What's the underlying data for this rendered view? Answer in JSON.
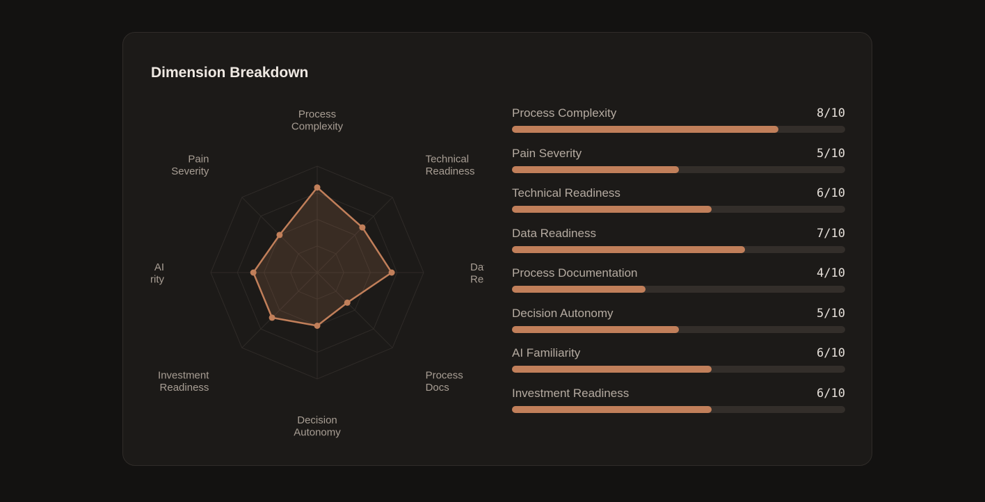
{
  "title": "Dimension Breakdown",
  "colors": {
    "accent": "#c17f5a",
    "grid": "#2f2b28",
    "track": "#332e2a"
  },
  "chart_data": {
    "type": "radar",
    "max": 10,
    "rings": 4,
    "axes": [
      {
        "name": "Process Complexity",
        "label_lines": [
          "Process",
          "Complexity"
        ],
        "value": 8
      },
      {
        "name": "Technical Readiness",
        "label_lines": [
          "Technical",
          "Readiness"
        ],
        "value": 6
      },
      {
        "name": "Data Readiness",
        "label_lines": [
          "Data",
          "Readiness"
        ],
        "value": 7
      },
      {
        "name": "Process Documentation",
        "label_lines": [
          "Process",
          "Docs"
        ],
        "value": 4
      },
      {
        "name": "Decision Autonomy",
        "label_lines": [
          "Decision",
          "Autonomy"
        ],
        "value": 5
      },
      {
        "name": "Investment Readiness",
        "label_lines": [
          "Investment",
          "Readiness"
        ],
        "value": 6
      },
      {
        "name": "AI Familiarity",
        "label_lines": [
          "AI",
          "Familiarity"
        ],
        "value": 6
      },
      {
        "name": "Pain Severity",
        "label_lines": [
          "Pain",
          "Severity"
        ],
        "value": 5
      }
    ]
  },
  "bars": [
    {
      "label": "Process Complexity",
      "value": 8,
      "display": "8/10"
    },
    {
      "label": "Pain Severity",
      "value": 5,
      "display": "5/10"
    },
    {
      "label": "Technical Readiness",
      "value": 6,
      "display": "6/10"
    },
    {
      "label": "Data Readiness",
      "value": 7,
      "display": "7/10"
    },
    {
      "label": "Process Documentation",
      "value": 4,
      "display": "4/10"
    },
    {
      "label": "Decision Autonomy",
      "value": 5,
      "display": "5/10"
    },
    {
      "label": "AI Familiarity",
      "value": 6,
      "display": "6/10"
    },
    {
      "label": "Investment Readiness",
      "value": 6,
      "display": "6/10"
    }
  ]
}
